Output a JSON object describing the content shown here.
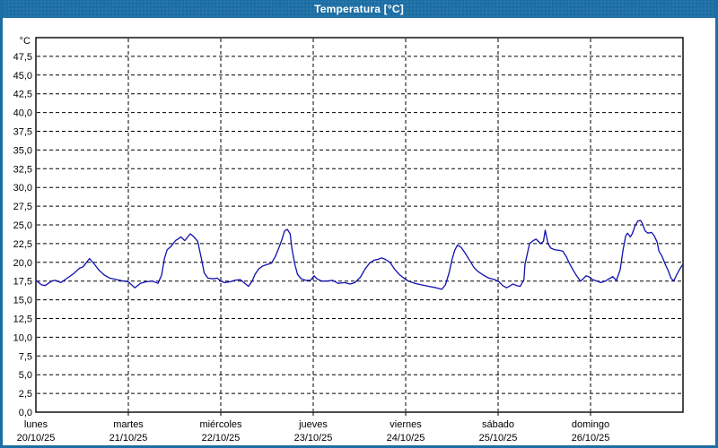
{
  "window": {
    "title": "Temperatura [°C]"
  },
  "colors": {
    "frame": "#1c6ea4",
    "titlebar_text": "#ffffff",
    "plot_background": "#ffffff",
    "plot_border": "#000000",
    "grid": "#000000",
    "line": "#1010ad",
    "label_text": "#000000"
  },
  "chart_data": {
    "type": "line",
    "title": "Temperatura [°C]",
    "grid": {
      "dashed": true,
      "horizontal_step": 2.5,
      "vertical_per_day": true
    },
    "y_axis": {
      "unit": "°C",
      "min": 0,
      "top_value": 50,
      "tick_step": 2.5,
      "tick_values": [
        0,
        2.5,
        5,
        7.5,
        10,
        12.5,
        15,
        17.5,
        20,
        22.5,
        25,
        27.5,
        30,
        32.5,
        35,
        37.5,
        40,
        42.5,
        45,
        47.5
      ],
      "tick_labels": [
        "0,0",
        "2,5",
        "5,0",
        "7,5",
        "10,0",
        "12,5",
        "15,0",
        "17,5",
        "20,0",
        "22,5",
        "25,0",
        "27,5",
        "30,0",
        "32,5",
        "35,0",
        "37,5",
        "40,0",
        "42,5",
        "45,0",
        "47,5"
      ]
    },
    "x_axis": {
      "days_span": 7,
      "days": [
        {
          "label": "lunes",
          "date": "20/10/25"
        },
        {
          "label": "martes",
          "date": "21/10/25"
        },
        {
          "label": "miércoles",
          "date": "22/10/25"
        },
        {
          "label": "jueves",
          "date": "23/10/25"
        },
        {
          "label": "viernes",
          "date": "24/10/25"
        },
        {
          "label": "sábado",
          "date": "25/10/25"
        },
        {
          "label": "domingo",
          "date": "26/10/25"
        }
      ]
    },
    "series": [
      {
        "name": "Temperatura",
        "points": [
          [
            0.0,
            17.6
          ],
          [
            0.06,
            17.0
          ],
          [
            0.1,
            16.9
          ],
          [
            0.17,
            17.5
          ],
          [
            0.21,
            17.6
          ],
          [
            0.27,
            17.3
          ],
          [
            0.34,
            17.9
          ],
          [
            0.41,
            18.5
          ],
          [
            0.47,
            19.2
          ],
          [
            0.51,
            19.4
          ],
          [
            0.58,
            20.5
          ],
          [
            0.63,
            19.8
          ],
          [
            0.68,
            19.0
          ],
          [
            0.74,
            18.3
          ],
          [
            0.8,
            17.9
          ],
          [
            0.87,
            17.7
          ],
          [
            0.95,
            17.5
          ],
          [
            1.0,
            17.4
          ],
          [
            1.07,
            16.6
          ],
          [
            1.13,
            17.2
          ],
          [
            1.19,
            17.4
          ],
          [
            1.26,
            17.5
          ],
          [
            1.32,
            17.2
          ],
          [
            1.36,
            18.3
          ],
          [
            1.39,
            20.5
          ],
          [
            1.42,
            21.7
          ],
          [
            1.46,
            22.1
          ],
          [
            1.51,
            22.9
          ],
          [
            1.57,
            23.4
          ],
          [
            1.61,
            22.9
          ],
          [
            1.67,
            23.8
          ],
          [
            1.71,
            23.4
          ],
          [
            1.75,
            22.8
          ],
          [
            1.79,
            20.5
          ],
          [
            1.82,
            18.6
          ],
          [
            1.86,
            17.9
          ],
          [
            1.92,
            17.8
          ],
          [
            1.96,
            17.9
          ],
          [
            2.0,
            17.5
          ],
          [
            2.04,
            17.3
          ],
          [
            2.1,
            17.4
          ],
          [
            2.15,
            17.6
          ],
          [
            2.21,
            17.7
          ],
          [
            2.25,
            17.3
          ],
          [
            2.3,
            16.8
          ],
          [
            2.34,
            17.5
          ],
          [
            2.37,
            18.4
          ],
          [
            2.41,
            19.1
          ],
          [
            2.45,
            19.5
          ],
          [
            2.5,
            19.7
          ],
          [
            2.55,
            19.9
          ],
          [
            2.59,
            20.8
          ],
          [
            2.63,
            22.0
          ],
          [
            2.66,
            23.0
          ],
          [
            2.69,
            24.2
          ],
          [
            2.72,
            24.4
          ],
          [
            2.75,
            23.8
          ],
          [
            2.77,
            21.8
          ],
          [
            2.8,
            19.8
          ],
          [
            2.83,
            18.4
          ],
          [
            2.87,
            17.8
          ],
          [
            2.92,
            17.6
          ],
          [
            2.97,
            17.6
          ],
          [
            3.01,
            18.2
          ],
          [
            3.04,
            17.8
          ],
          [
            3.09,
            17.5
          ],
          [
            3.15,
            17.5
          ],
          [
            3.21,
            17.6
          ],
          [
            3.27,
            17.2
          ],
          [
            3.34,
            17.3
          ],
          [
            3.4,
            17.1
          ],
          [
            3.45,
            17.3
          ],
          [
            3.51,
            18.0
          ],
          [
            3.56,
            19.1
          ],
          [
            3.61,
            19.9
          ],
          [
            3.66,
            20.3
          ],
          [
            3.7,
            20.4
          ],
          [
            3.74,
            20.6
          ],
          [
            3.78,
            20.4
          ],
          [
            3.83,
            20.0
          ],
          [
            3.88,
            19.1
          ],
          [
            3.93,
            18.4
          ],
          [
            3.98,
            17.9
          ],
          [
            4.03,
            17.5
          ],
          [
            4.1,
            17.2
          ],
          [
            4.17,
            17.0
          ],
          [
            4.25,
            16.8
          ],
          [
            4.33,
            16.6
          ],
          [
            4.39,
            16.4
          ],
          [
            4.43,
            17.0
          ],
          [
            4.47,
            18.6
          ],
          [
            4.5,
            20.3
          ],
          [
            4.53,
            21.6
          ],
          [
            4.56,
            22.3
          ],
          [
            4.6,
            22.0
          ],
          [
            4.64,
            21.3
          ],
          [
            4.69,
            20.3
          ],
          [
            4.74,
            19.3
          ],
          [
            4.78,
            18.8
          ],
          [
            4.84,
            18.3
          ],
          [
            4.9,
            17.9
          ],
          [
            4.96,
            17.7
          ],
          [
            5.01,
            17.4
          ],
          [
            5.05,
            16.9
          ],
          [
            5.09,
            16.6
          ],
          [
            5.12,
            16.8
          ],
          [
            5.16,
            17.1
          ],
          [
            5.2,
            16.9
          ],
          [
            5.24,
            16.8
          ],
          [
            5.28,
            17.7
          ],
          [
            5.29,
            19.7
          ],
          [
            5.34,
            22.5
          ],
          [
            5.38,
            22.9
          ],
          [
            5.41,
            23.1
          ],
          [
            5.46,
            22.5
          ],
          [
            5.49,
            22.8
          ],
          [
            5.51,
            24.3
          ],
          [
            5.54,
            22.5
          ],
          [
            5.57,
            21.9
          ],
          [
            5.61,
            21.7
          ],
          [
            5.66,
            21.6
          ],
          [
            5.7,
            21.5
          ],
          [
            5.74,
            20.7
          ],
          [
            5.77,
            19.9
          ],
          [
            5.81,
            19.0
          ],
          [
            5.85,
            18.2
          ],
          [
            5.89,
            17.5
          ],
          [
            5.92,
            17.8
          ],
          [
            5.95,
            18.2
          ],
          [
            5.98,
            18.1
          ],
          [
            6.02,
            17.7
          ],
          [
            6.07,
            17.5
          ],
          [
            6.11,
            17.3
          ],
          [
            6.16,
            17.5
          ],
          [
            6.2,
            17.8
          ],
          [
            6.24,
            18.1
          ],
          [
            6.28,
            17.6
          ],
          [
            6.32,
            19.0
          ],
          [
            6.35,
            21.5
          ],
          [
            6.38,
            23.5
          ],
          [
            6.4,
            23.9
          ],
          [
            6.43,
            23.4
          ],
          [
            6.45,
            23.8
          ],
          [
            6.48,
            24.8
          ],
          [
            6.51,
            25.5
          ],
          [
            6.54,
            25.6
          ],
          [
            6.56,
            25.2
          ],
          [
            6.59,
            24.2
          ],
          [
            6.62,
            23.9
          ],
          [
            6.66,
            24.0
          ],
          [
            6.69,
            23.5
          ],
          [
            6.72,
            22.7
          ],
          [
            6.74,
            21.5
          ],
          [
            6.77,
            20.9
          ],
          [
            6.81,
            19.7
          ],
          [
            6.84,
            18.9
          ],
          [
            6.87,
            17.9
          ],
          [
            6.9,
            17.5
          ],
          [
            6.93,
            18.3
          ],
          [
            6.96,
            19.0
          ],
          [
            6.99,
            19.6
          ]
        ]
      }
    ]
  }
}
